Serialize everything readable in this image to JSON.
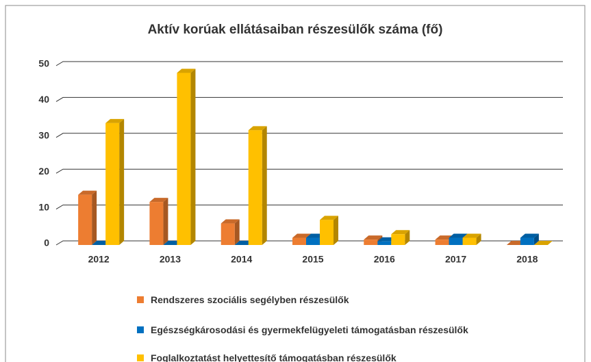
{
  "chart_data": {
    "type": "bar3d",
    "title": "Aktív korúak ellátásaiban részesülők száma (fő)",
    "categories": [
      "2012",
      "2013",
      "2014",
      "2015",
      "2016",
      "2017",
      "2018"
    ],
    "series": [
      {
        "name": "Rendszeres szociális segélyben részesülők",
        "color": "#ed7d31",
        "values": [
          14,
          12,
          6,
          2,
          1.5,
          1.5,
          0
        ]
      },
      {
        "name": "Egészségkárosodási és gyermekfelügyeleti támogatásban részesülők",
        "color": "#0070c0",
        "values": [
          0,
          0,
          0,
          2,
          1,
          2,
          2
        ]
      },
      {
        "name": "Foglalkoztatást helyettesítő támogatásban részesülők",
        "color": "#ffc000",
        "values": [
          34,
          48,
          32,
          7,
          3,
          2,
          0
        ]
      }
    ],
    "ylim": [
      0,
      50
    ],
    "yticks": [
      0,
      10,
      20,
      30,
      40,
      50
    ],
    "grid": true
  }
}
